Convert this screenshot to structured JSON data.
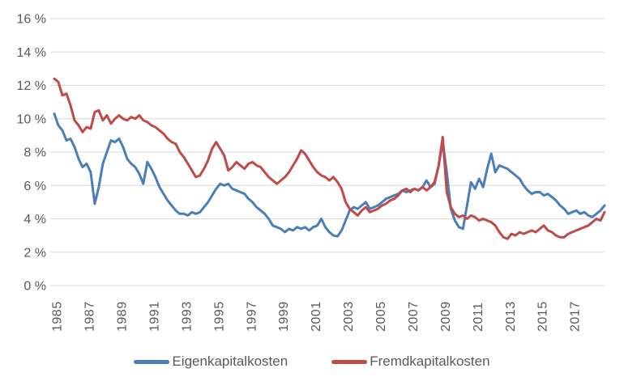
{
  "chart_data": {
    "type": "line",
    "title": "",
    "xlabel": "",
    "ylabel": "",
    "x_start": 1985.0,
    "x_step_years": 0.25,
    "x_end": 2019.0,
    "ylim": [
      0,
      16
    ],
    "grid": "horizontal",
    "legend_position": "bottom-center",
    "ytick_values": [
      0,
      2,
      4,
      6,
      8,
      10,
      12,
      14,
      16
    ],
    "ytick_labels": [
      "0 %",
      "2 %",
      "4 %",
      "6 %",
      "8 %",
      "10 %",
      "12 %",
      "14 %",
      "16 %"
    ],
    "xtick_values": [
      1985,
      1987,
      1989,
      1991,
      1993,
      1995,
      1997,
      1999,
      2001,
      2003,
      2005,
      2007,
      2009,
      2011,
      2013,
      2015,
      2017
    ],
    "xtick_labels": [
      "1985",
      "1987",
      "1989",
      "1991",
      "1993",
      "1995",
      "1997",
      "1999",
      "2001",
      "2003",
      "2005",
      "2007",
      "2009",
      "2011",
      "2013",
      "2015",
      "2017"
    ],
    "series": [
      {
        "name": "Eigenkapitalkosten",
        "color": "#4A7EBB",
        "values": [
          10.3,
          9.6,
          9.3,
          8.7,
          8.8,
          8.3,
          7.6,
          7.1,
          7.3,
          6.8,
          4.9,
          5.9,
          7.3,
          8.0,
          8.7,
          8.6,
          8.8,
          8.3,
          7.6,
          7.3,
          7.1,
          6.7,
          6.1,
          7.4,
          7.0,
          6.5,
          5.9,
          5.5,
          5.1,
          4.8,
          4.5,
          4.3,
          4.3,
          4.2,
          4.4,
          4.3,
          4.4,
          4.7,
          5.0,
          5.4,
          5.8,
          6.1,
          6.0,
          6.1,
          5.8,
          5.7,
          5.6,
          5.5,
          5.2,
          5.0,
          4.7,
          4.5,
          4.3,
          4.0,
          3.6,
          3.5,
          3.4,
          3.2,
          3.4,
          3.3,
          3.5,
          3.4,
          3.5,
          3.3,
          3.5,
          3.6,
          4.0,
          3.5,
          3.2,
          3.0,
          2.95,
          3.3,
          3.9,
          4.5,
          4.7,
          4.6,
          4.8,
          5.0,
          4.6,
          4.7,
          4.8,
          5.0,
          5.2,
          5.3,
          5.4,
          5.5,
          5.7,
          5.6,
          5.7,
          5.8,
          5.7,
          5.9,
          6.3,
          5.9,
          6.1,
          7.2,
          8.6,
          6.8,
          4.6,
          3.9,
          3.5,
          3.4,
          4.8,
          6.2,
          5.8,
          6.4,
          5.9,
          7.0,
          7.9,
          6.8,
          7.2,
          7.1,
          7.0,
          6.8,
          6.6,
          6.4,
          6.0,
          5.7,
          5.5,
          5.6,
          5.6,
          5.4,
          5.5,
          5.3,
          5.1,
          4.8,
          4.6,
          4.3,
          4.4,
          4.5,
          4.3,
          4.4,
          4.2,
          4.1,
          4.3,
          4.5,
          4.8
        ]
      },
      {
        "name": "Fremdkapitalkosten",
        "color": "#BE4B48",
        "values": [
          12.4,
          12.2,
          11.4,
          11.5,
          10.8,
          9.9,
          9.6,
          9.2,
          9.5,
          9.4,
          10.4,
          10.5,
          9.9,
          10.2,
          9.7,
          10.0,
          10.2,
          10.0,
          9.9,
          10.1,
          10.0,
          10.2,
          9.9,
          9.8,
          9.6,
          9.5,
          9.3,
          9.1,
          8.8,
          8.6,
          8.5,
          8.0,
          7.7,
          7.3,
          6.9,
          6.5,
          6.6,
          7.0,
          7.5,
          8.2,
          8.6,
          8.2,
          7.8,
          6.9,
          7.1,
          7.4,
          7.2,
          7.0,
          7.3,
          7.4,
          7.2,
          7.1,
          6.8,
          6.5,
          6.3,
          6.1,
          6.3,
          6.5,
          6.8,
          7.2,
          7.6,
          8.1,
          7.9,
          7.5,
          7.1,
          6.8,
          6.6,
          6.5,
          6.3,
          6.5,
          6.2,
          5.8,
          5.0,
          4.6,
          4.4,
          4.2,
          4.5,
          4.7,
          4.4,
          4.5,
          4.6,
          4.8,
          4.9,
          5.1,
          5.2,
          5.4,
          5.7,
          5.8,
          5.6,
          5.8,
          5.7,
          5.9,
          5.7,
          5.9,
          6.2,
          7.2,
          8.9,
          5.6,
          4.7,
          4.3,
          4.1,
          4.2,
          4.0,
          4.2,
          4.1,
          3.9,
          4.0,
          3.9,
          3.8,
          3.6,
          3.2,
          2.9,
          2.8,
          3.1,
          3.0,
          3.2,
          3.1,
          3.2,
          3.3,
          3.2,
          3.4,
          3.6,
          3.3,
          3.2,
          3.0,
          2.9,
          2.9,
          3.1,
          3.2,
          3.3,
          3.4,
          3.5,
          3.6,
          3.8,
          4.0,
          3.9,
          4.4
        ]
      }
    ]
  },
  "legend": {
    "items": [
      {
        "label": "Eigenkapitalkosten",
        "color": "#4A7EBB"
      },
      {
        "label": "Fremdkapitalkosten",
        "color": "#BE4B48"
      }
    ]
  },
  "colors": {
    "gridline": "#D9D9D9",
    "axis_text": "#595959",
    "background": "#FFFFFF",
    "series_blue": "#4A7EBB",
    "series_red": "#BE4B48"
  }
}
